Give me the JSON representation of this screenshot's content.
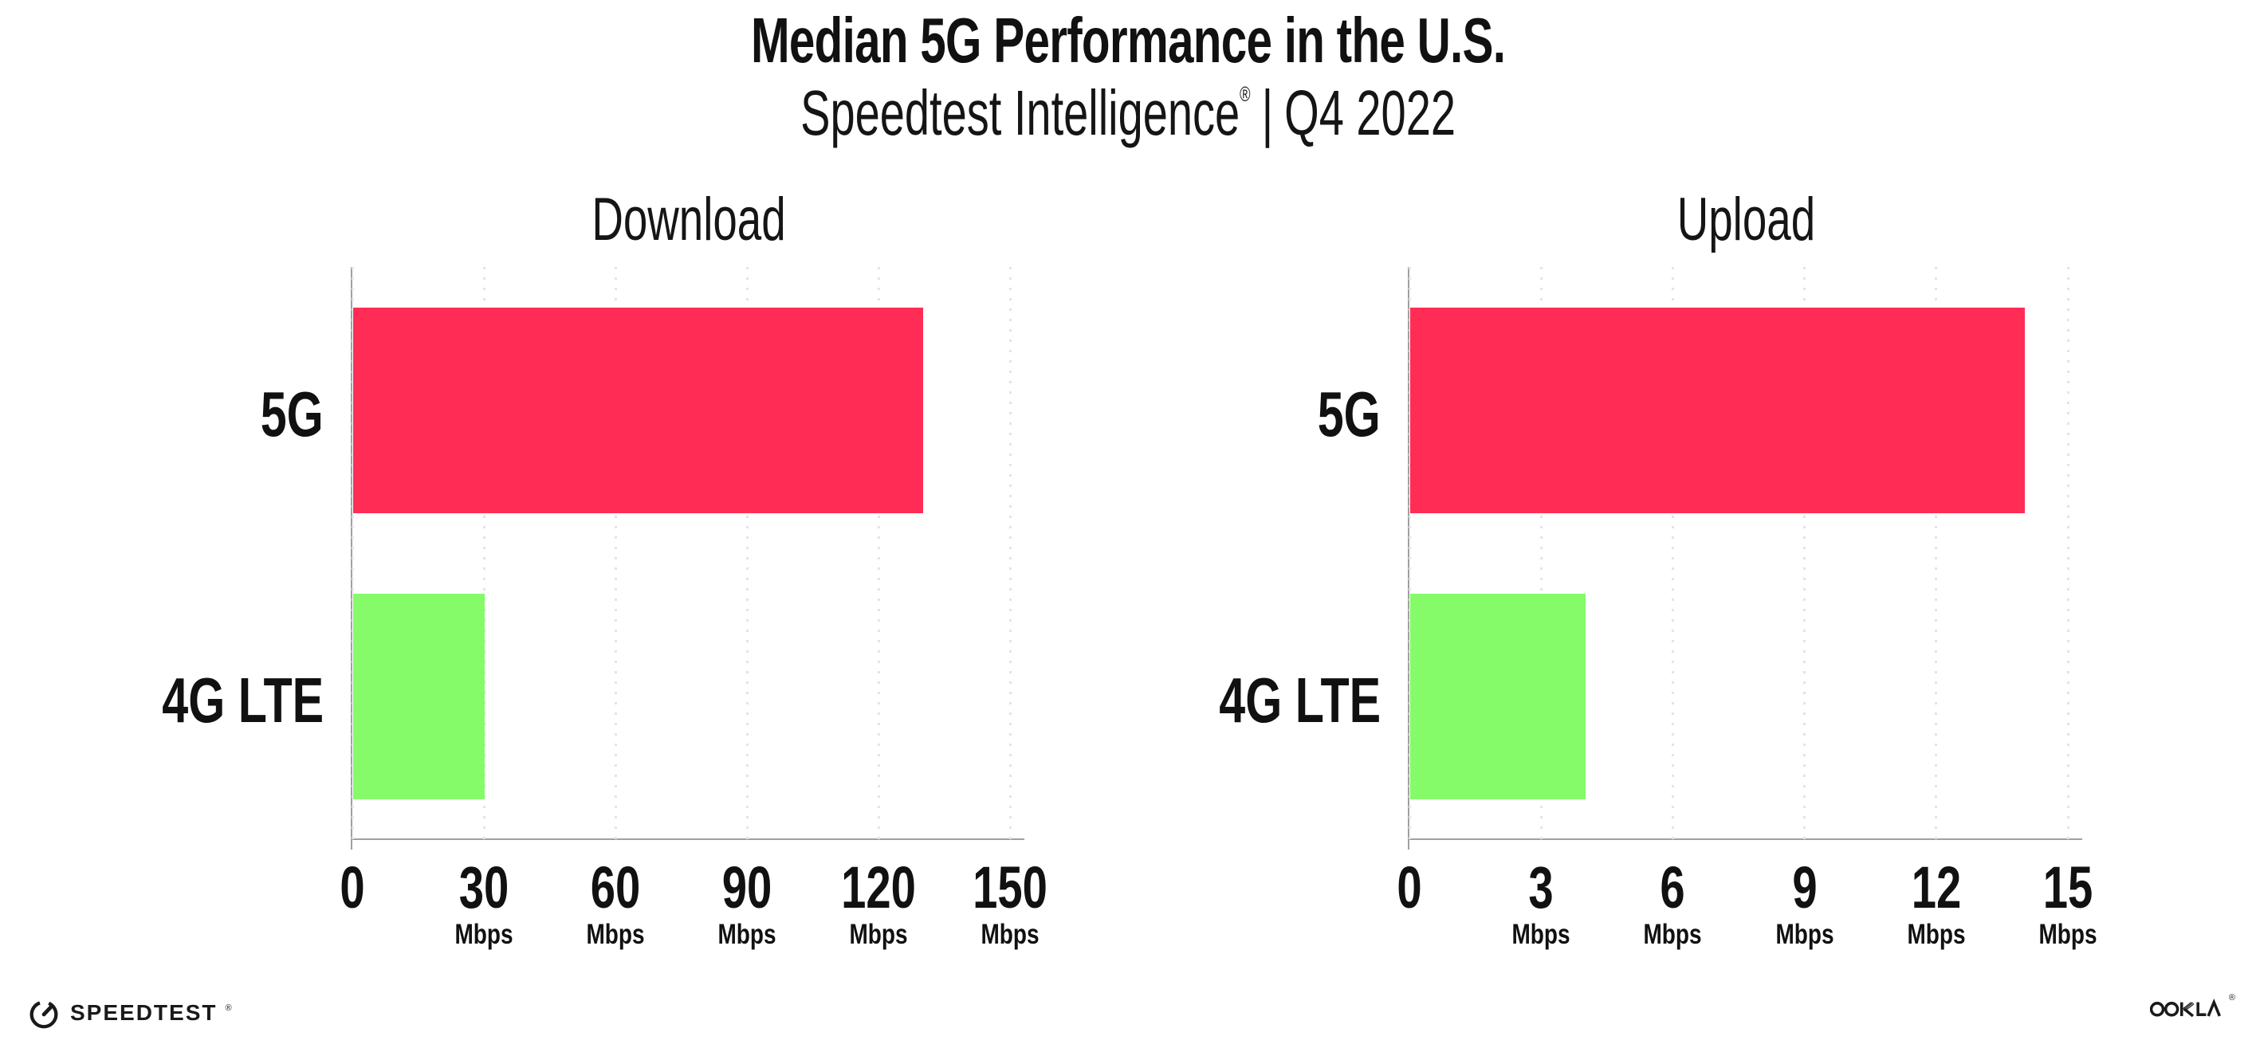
{
  "header": {
    "title": "Median 5G Performance in the U.S.",
    "subtitle_brand": "Speedtest Intelligence",
    "subtitle_trademark": "®",
    "subtitle_separator": "|",
    "subtitle_period": "Q4 2022"
  },
  "chart_data": [
    {
      "type": "bar",
      "orientation": "horizontal",
      "title": "Download",
      "categories": [
        "5G",
        "4G LTE"
      ],
      "values": [
        130,
        30
      ],
      "unit": "Mbps",
      "xlabel": "",
      "ylabel": "",
      "xlim": [
        0,
        153
      ],
      "xticks": [
        0,
        30,
        60,
        90,
        120,
        150
      ],
      "xtick_unit_label": "Mbps",
      "bar_colors": [
        "#ff2d55",
        "#85fb6a"
      ],
      "grid": "dotted-vertical-at-ticks",
      "legend": "none"
    },
    {
      "type": "bar",
      "orientation": "horizontal",
      "title": "Upload",
      "categories": [
        "5G",
        "4G LTE"
      ],
      "values": [
        14,
        4
      ],
      "unit": "Mbps",
      "xlabel": "",
      "ylabel": "",
      "xlim": [
        0,
        15.3
      ],
      "xticks": [
        0,
        3,
        6,
        9,
        12,
        15
      ],
      "xtick_unit_label": "Mbps",
      "bar_colors": [
        "#ff2d55",
        "#85fb6a"
      ],
      "grid": "dotted-vertical-at-ticks",
      "legend": "none"
    }
  ],
  "footer": {
    "left_logo_text": "SPEEDTEST",
    "left_logo_mark": "®",
    "left_logo_icon": "speedtest-gauge-icon",
    "right_logo_text": "OOKLA",
    "right_logo_mark": "®"
  },
  "colors": {
    "bar_5g": "#ff2d55",
    "bar_4g_lte": "#85fb6a",
    "axis": "#a0a0a0",
    "gridline_dot": "#e3e3ed",
    "text": "#111111",
    "background": "#ffffff"
  }
}
